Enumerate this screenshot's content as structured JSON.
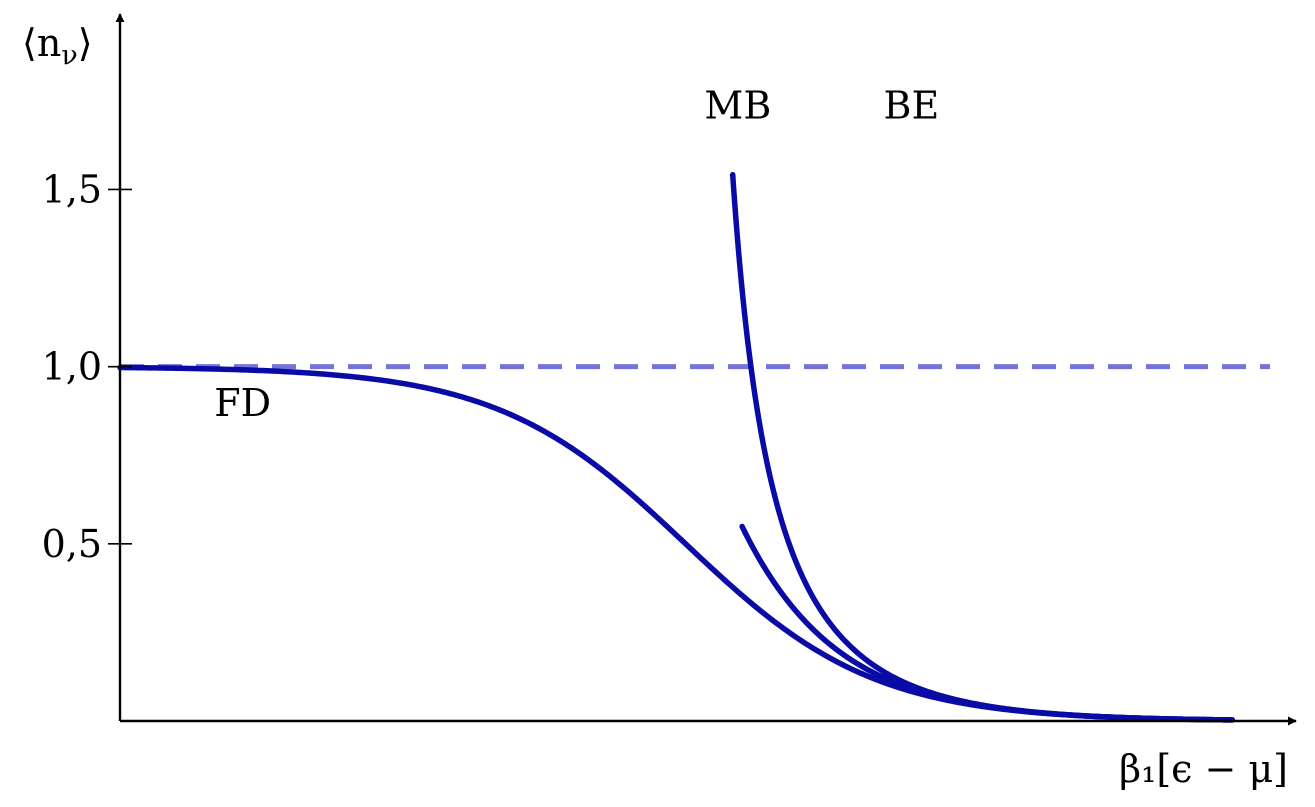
{
  "chart_data": {
    "type": "line",
    "title": "",
    "xlabel": "β₁[ϵ − μ]",
    "ylabel": "⟨n_ν⟩",
    "ylabel_main": "⟨n",
    "ylabel_sub": "ν",
    "ylabel_close": "⟩",
    "xlim": [
      -6,
      6.2
    ],
    "ylim": [
      0,
      1.95
    ],
    "yticks": [
      {
        "value": 0.5,
        "label": "0,5"
      },
      {
        "value": 1.0,
        "label": "1,0"
      },
      {
        "value": 1.5,
        "label": "1,5"
      }
    ],
    "grid": false,
    "colors": {
      "curve": "#0a0aa6",
      "reference": "#7474dc",
      "axis": "#000000"
    },
    "reference_line": {
      "y": 1.0,
      "style": "dashed",
      "x_range": [
        -6,
        6.2
      ]
    },
    "series": [
      {
        "name": "FD",
        "formula": "1/(exp(x)+1)",
        "x_range": [
          -6,
          5.8
        ],
        "label": {
          "x": -5.0,
          "y": 0.9
        }
      },
      {
        "name": "MB",
        "formula": "exp(-x)",
        "x_range": [
          0.6,
          5.8
        ],
        "label": {
          "x": 0.2,
          "y": 1.74
        }
      },
      {
        "name": "BE",
        "formula": "1/(exp(x)-1)",
        "x_range": [
          0.5,
          5.8
        ],
        "label": {
          "x": 2.1,
          "y": 1.74
        }
      }
    ]
  }
}
